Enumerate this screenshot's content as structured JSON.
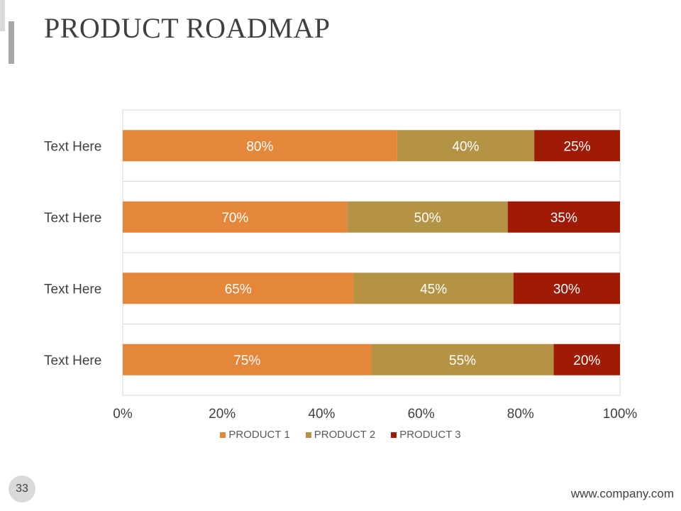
{
  "slide": {
    "title": "PRODUCT ROADMAP",
    "page_number": "33",
    "footer_url": "www.company.com"
  },
  "colors": {
    "product1": "#E4873A",
    "product2": "#B59345",
    "product3": "#A01B06",
    "grid": "#d9d9d9",
    "axis_text": "#404040"
  },
  "chart_data": {
    "type": "bar",
    "orientation": "horizontal",
    "stacked": "percent",
    "categories": [
      "Text Here",
      "Text Here",
      "Text Here",
      "Text Here"
    ],
    "series": [
      {
        "name": "PRODUCT 1",
        "values": [
          80,
          70,
          65,
          75
        ],
        "labels": [
          "80%",
          "70%",
          "65%",
          "75%"
        ]
      },
      {
        "name": "PRODUCT 2",
        "values": [
          40,
          50,
          45,
          55
        ],
        "labels": [
          "40%",
          "50%",
          "45%",
          "55%"
        ]
      },
      {
        "name": "PRODUCT 3",
        "values": [
          25,
          35,
          30,
          20
        ],
        "labels": [
          "25%",
          "35%",
          "30%",
          "20%"
        ]
      }
    ],
    "x_ticks": [
      "0%",
      "20%",
      "40%",
      "60%",
      "80%",
      "100%"
    ],
    "xlim": [
      0,
      100
    ],
    "title": "",
    "xlabel": "",
    "ylabel": "",
    "grid": true,
    "legend_position": "bottom"
  }
}
